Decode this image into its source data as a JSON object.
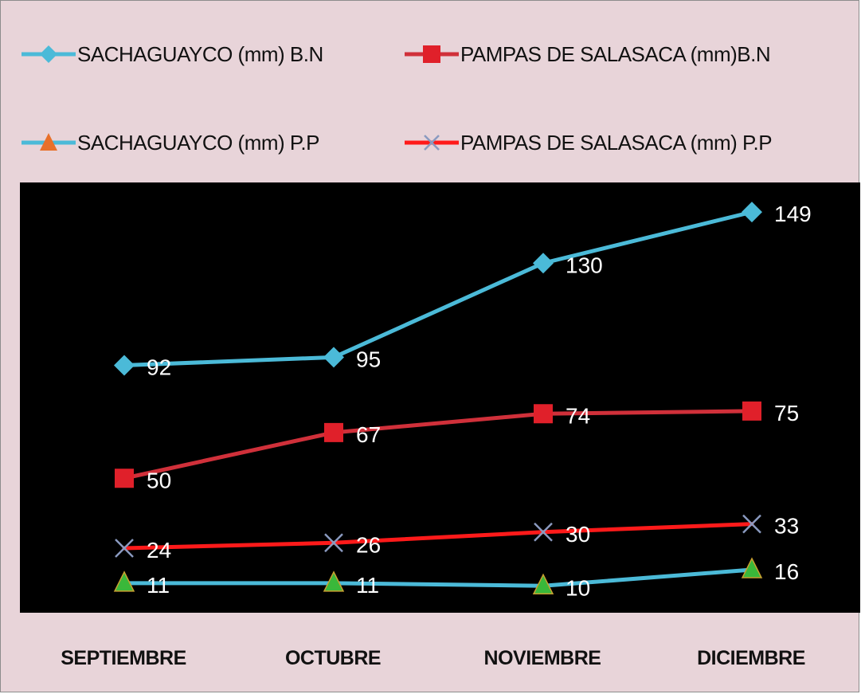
{
  "chart_data": {
    "type": "line",
    "title": "",
    "xlabel": "",
    "ylabel": "",
    "categories": [
      "SEPTIEMBRE",
      "OCTUBRE",
      "NOVIEMBRE",
      "DICIEMBRE"
    ],
    "ylim": [
      0,
      160
    ],
    "grid": false,
    "legend_position": "top",
    "plot_background": "#000000",
    "chart_background": "#e8d4d9",
    "series": [
      {
        "name": "SACHAGUAYCO (mm) B.N",
        "values": [
          92,
          95,
          130,
          149
        ],
        "line_color": "#4bbad8",
        "marker": "diamond",
        "marker_color": "#4bbad8"
      },
      {
        "name": "PAMPAS DE SALASACA (mm)B.N",
        "values": [
          50,
          67,
          74,
          75
        ],
        "line_color": "#d0303a",
        "marker": "square",
        "marker_color": "#e0202a"
      },
      {
        "name": "SACHAGUAYCO (mm) P.P",
        "values": [
          11,
          11,
          10,
          16
        ],
        "line_color": "#4bbad8",
        "marker": "triangle",
        "marker_color": "#3ab83a",
        "legend_marker_color": "#e8702a"
      },
      {
        "name": "PAMPAS DE SALASACA (mm) P.P",
        "values": [
          24,
          26,
          30,
          33
        ],
        "line_color": "#ff1a1a",
        "marker": "x",
        "marker_color": "#8a9ac0"
      }
    ]
  }
}
